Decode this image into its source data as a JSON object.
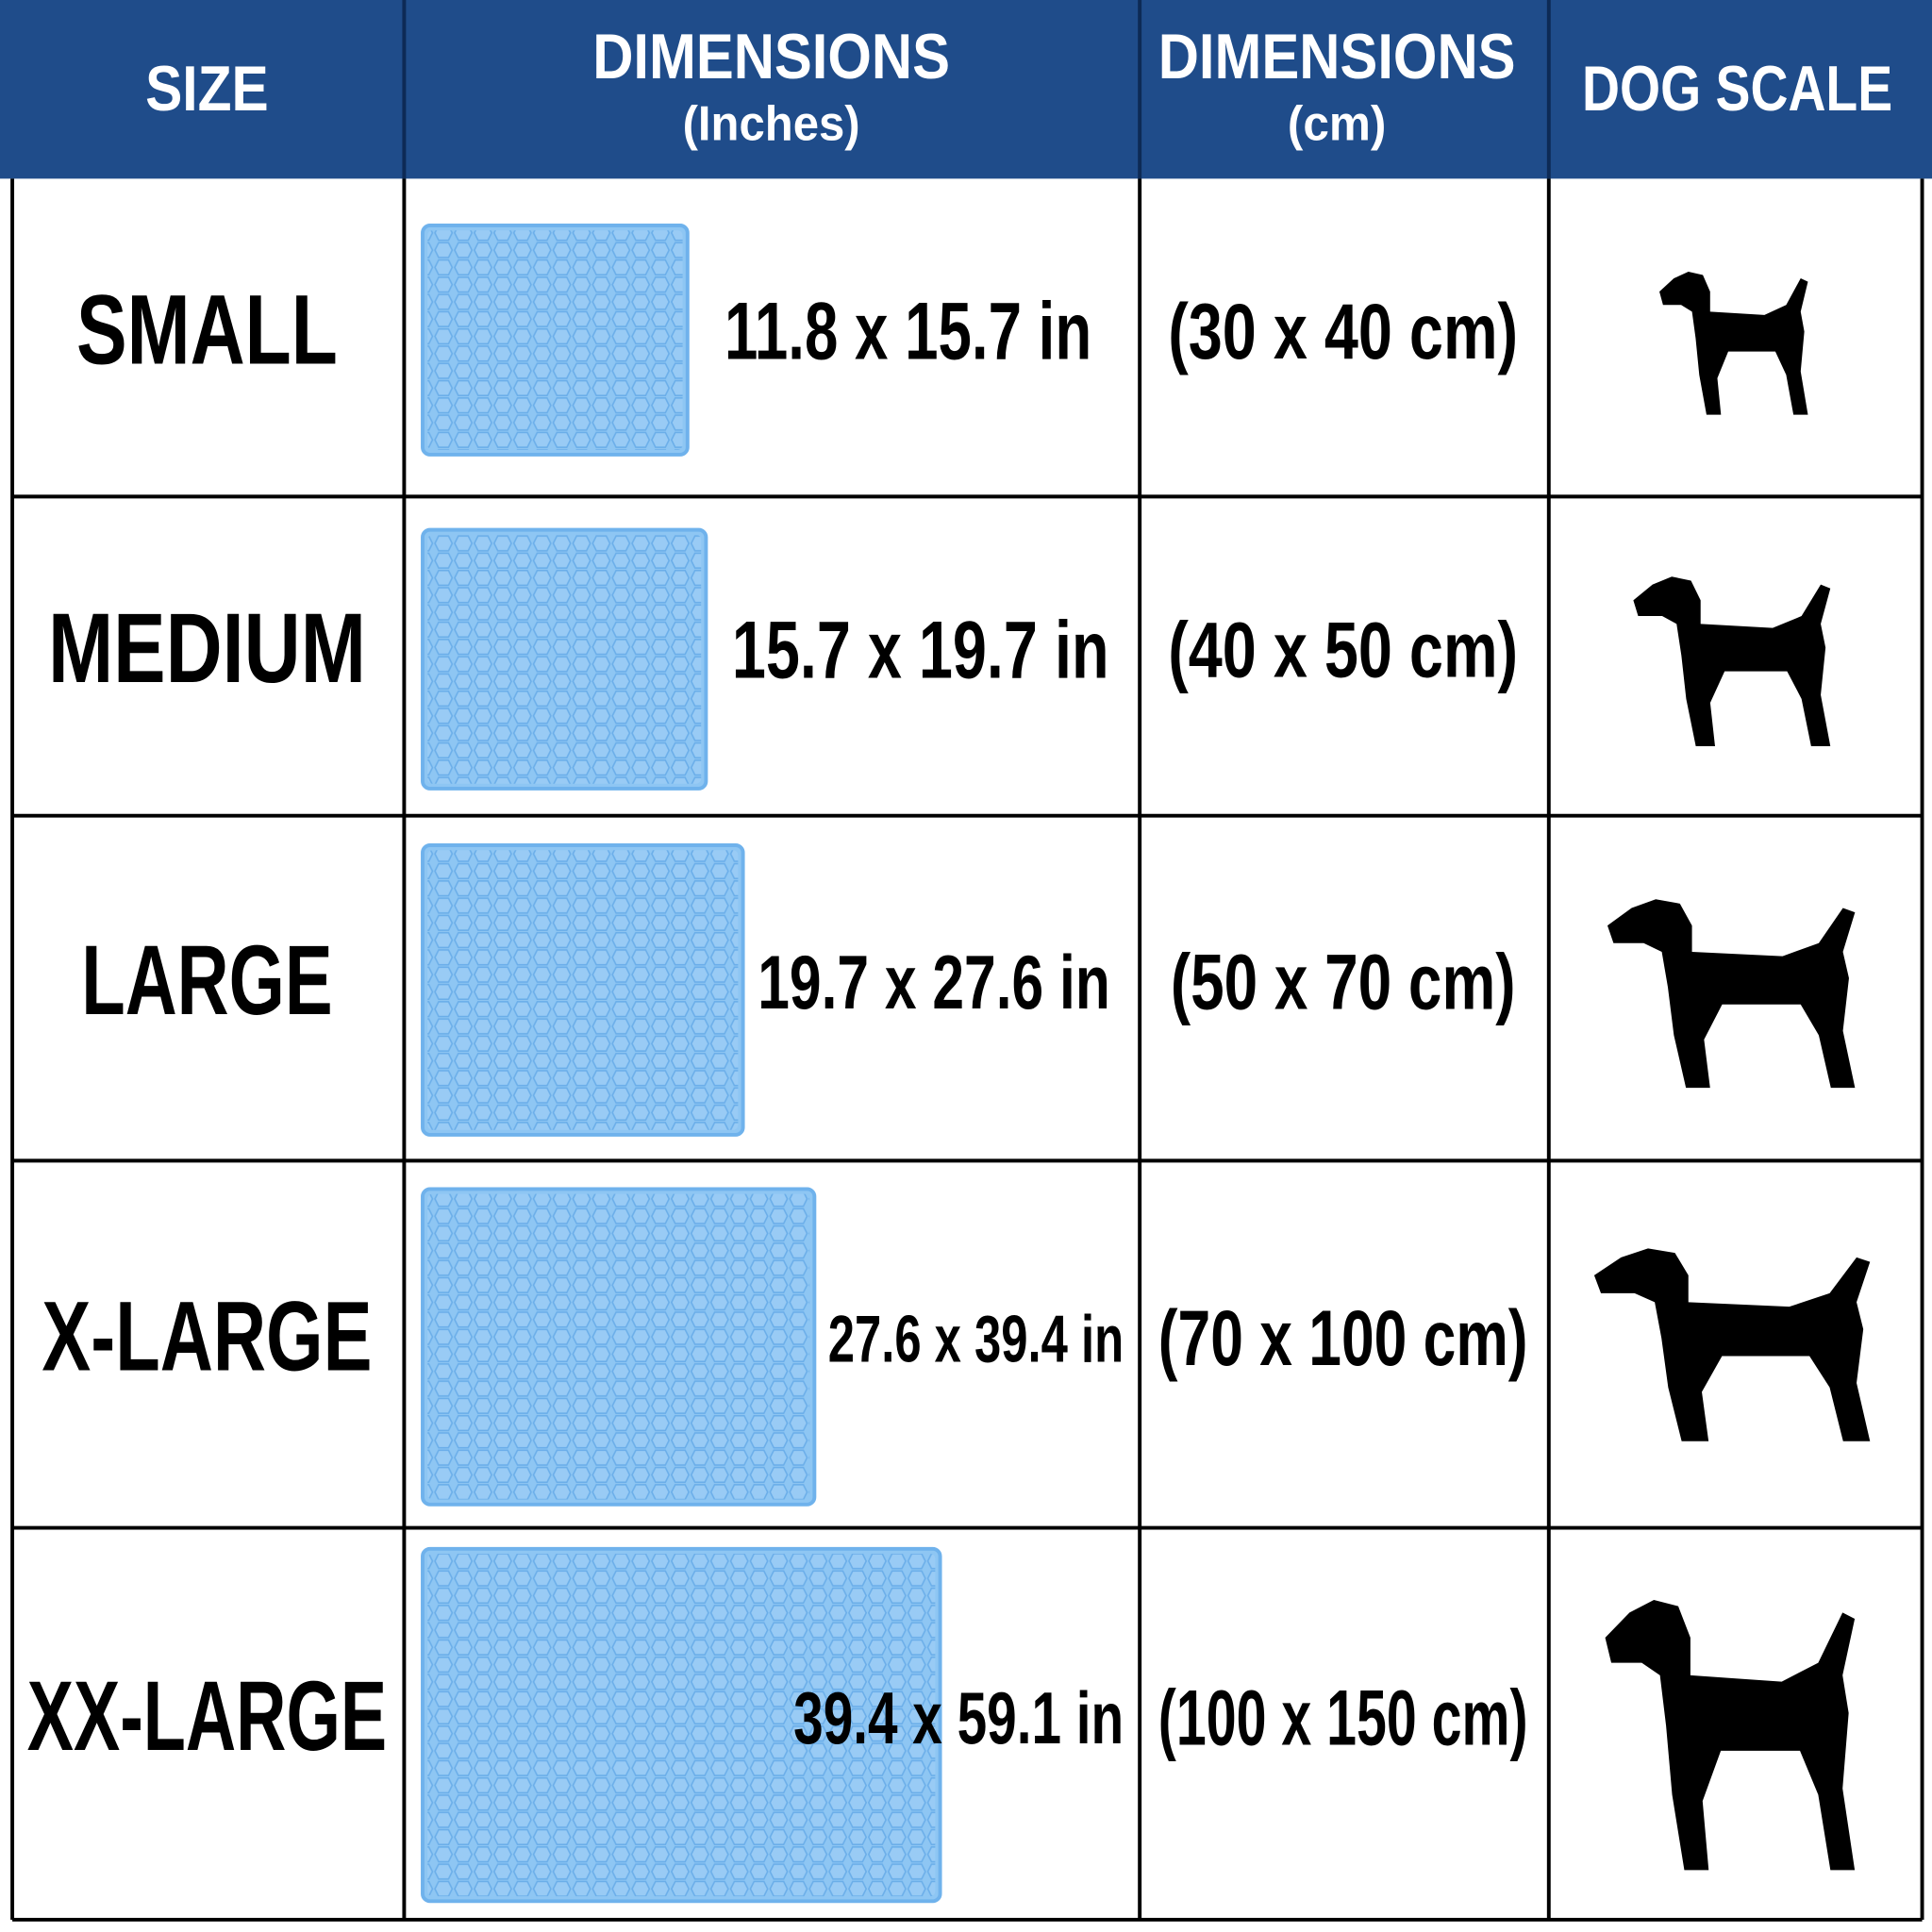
{
  "header": {
    "columns": [
      {
        "title": "SIZE"
      },
      {
        "title": "DIMENSIONS",
        "unit": "(Inches)"
      },
      {
        "title": "DIMENSIONS",
        "unit": "(cm)"
      },
      {
        "title": "DOG SCALE"
      }
    ]
  },
  "table": {
    "rows": [
      {
        "size": "SMALL",
        "inches": "11.8 x 15.7 in",
        "cm": "(30 x 40 cm)"
      },
      {
        "size": "MEDIUM",
        "inches": "15.7 x 19.7 in",
        "cm": "(40 x 50 cm)"
      },
      {
        "size": "LARGE",
        "inches": "19.7 x 27.6 in",
        "cm": "(50 x 70 cm)"
      },
      {
        "size": "X-LARGE",
        "inches": "27.6 x 39.4 in",
        "cm": "(70 x 100 cm)"
      },
      {
        "size": "XX-LARGE",
        "inches": "39.4 x 59.1 in",
        "cm": "(100 x 150 cm)"
      }
    ]
  }
}
